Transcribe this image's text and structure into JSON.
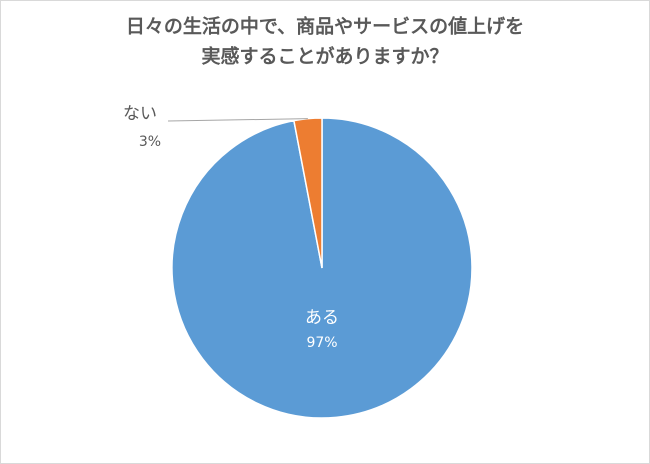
{
  "chart_data": {
    "type": "pie",
    "title": [
      "日々の生活の中で、商品やサービスの値上げを",
      "実感することがありますか？"
    ],
    "categories": [
      "ある",
      "ない"
    ],
    "values": [
      97,
      3
    ],
    "value_labels": [
      "97%",
      "3%"
    ],
    "colors": [
      "#5b9bd5",
      "#ed7d31"
    ]
  }
}
